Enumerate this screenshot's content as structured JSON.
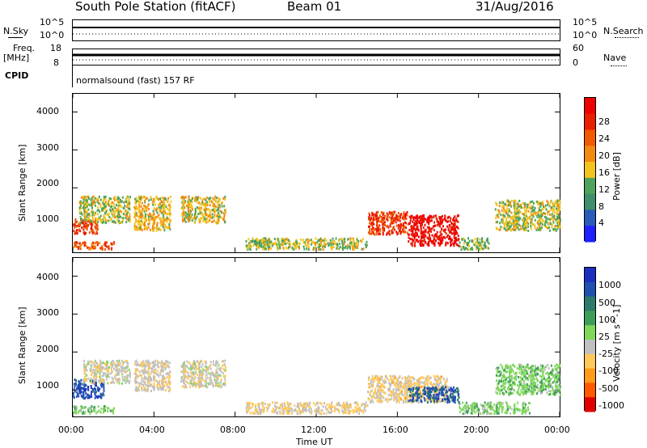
{
  "header": {
    "station": "South Pole Station (fitACF)",
    "beam": "Beam 01",
    "date": "31/Aug/2016"
  },
  "top_panels": {
    "nsky_label": "N.Sky",
    "nsky_ticks": [
      "10^5",
      "10^0"
    ],
    "nsearch_label": "N.Search",
    "nsearch_ticks": [
      "10^5",
      "10^0"
    ],
    "freq_label": "Freq.",
    "freq_unit": "[MHz]",
    "freq_ticks": [
      "18",
      "8"
    ],
    "nave_label": "Nave",
    "nave_ticks": [
      "60",
      "0"
    ],
    "cpid_label": "CPID",
    "cpid_text": "normalsound (fast) 157 RF"
  },
  "colors": {
    "power_scale": [
      "#1f1fff",
      "#2a5bb8",
      "#3e8f6b",
      "#4fa35a",
      "#f2c51e",
      "#f38a10",
      "#f05a00",
      "#e82000",
      "#ee0000"
    ],
    "velocity_scale": [
      "#e00000",
      "#ff5a00",
      "#ff9a1a",
      "#ffc85a",
      "#c0c0c0",
      "#7fd85a",
      "#3c9e58",
      "#2c7a6a",
      "#2050b0",
      "#1a2fc0"
    ]
  },
  "chart_data": [
    {
      "type": "heatmap",
      "title": "",
      "xlabel": "",
      "ylabel": "Slant Range [km]",
      "x_ticks": [
        "00:00",
        "04:00",
        "08:00",
        "12:00",
        "16:00",
        "20:00",
        "00:00"
      ],
      "y_ticks": [
        "1000",
        "2000",
        "3000",
        "4000"
      ],
      "ylim": [
        300,
        4500
      ],
      "colorbar": {
        "label": "Power [dB]",
        "ticks": [
          "4",
          "8",
          "12",
          "16",
          "20",
          "24",
          "28"
        ],
        "range": [
          0,
          30
        ]
      },
      "patches": [
        {
          "t": [
            0.0,
            1.2
          ],
          "r": [
            800,
            1200
          ],
          "value": 24
        },
        {
          "t": [
            0.3,
            2.8
          ],
          "r": [
            1100,
            1800
          ],
          "value": 14
        },
        {
          "t": [
            0.0,
            2.0
          ],
          "r": [
            400,
            600
          ],
          "value": 22
        },
        {
          "t": [
            3.0,
            4.8
          ],
          "r": [
            900,
            1800
          ],
          "value": 16
        },
        {
          "t": [
            5.3,
            7.5
          ],
          "r": [
            1100,
            1800
          ],
          "value": 15
        },
        {
          "t": [
            8.5,
            9.5
          ],
          "r": [
            400,
            700
          ],
          "value": 12
        },
        {
          "t": [
            9.0,
            14.5
          ],
          "r": [
            400,
            700
          ],
          "value": 14
        },
        {
          "t": [
            14.5,
            16.5
          ],
          "r": [
            800,
            1400
          ],
          "value": 24
        },
        {
          "t": [
            16.5,
            19.0
          ],
          "r": [
            500,
            1300
          ],
          "value": 28
        },
        {
          "t": [
            19.0,
            20.5
          ],
          "r": [
            400,
            700
          ],
          "value": 12
        },
        {
          "t": [
            20.8,
            24.0
          ],
          "r": [
            900,
            1700
          ],
          "value": 14
        }
      ]
    },
    {
      "type": "heatmap",
      "title": "",
      "xlabel": "Time UT",
      "ylabel": "Slant Range [km]",
      "x_ticks": [
        "00:00",
        "04:00",
        "08:00",
        "12:00",
        "16:00",
        "20:00",
        "00:00"
      ],
      "y_ticks": [
        "1000",
        "2000",
        "3000",
        "4000"
      ],
      "ylim": [
        300,
        4500
      ],
      "colorbar": {
        "label": "Velocity [m s^-1]",
        "ticks": [
          "1000",
          "500",
          "100",
          "25",
          "-25",
          "-100",
          "-500",
          "-1000"
        ],
        "range": [
          -1200,
          1200
        ]
      },
      "patches": [
        {
          "t": [
            0.0,
            1.5
          ],
          "r": [
            800,
            1300
          ],
          "value": 900
        },
        {
          "t": [
            0.5,
            2.8
          ],
          "r": [
            1200,
            1800
          ],
          "value": -150
        },
        {
          "t": [
            0.0,
            2.0
          ],
          "r": [
            400,
            600
          ],
          "value": 150
        },
        {
          "t": [
            3.0,
            4.8
          ],
          "r": [
            1000,
            1800
          ],
          "value": -200
        },
        {
          "t": [
            5.3,
            7.5
          ],
          "r": [
            1100,
            1800
          ],
          "value": -150
        },
        {
          "t": [
            8.5,
            14.5
          ],
          "r": [
            400,
            700
          ],
          "value": -250
        },
        {
          "t": [
            14.5,
            18.5
          ],
          "r": [
            700,
            1400
          ],
          "value": -300
        },
        {
          "t": [
            16.5,
            19.0
          ],
          "r": [
            700,
            1100
          ],
          "value": 800
        },
        {
          "t": [
            19.0,
            22.5
          ],
          "r": [
            400,
            700
          ],
          "value": 120
        },
        {
          "t": [
            20.8,
            24.0
          ],
          "r": [
            900,
            1700
          ],
          "value": 150
        }
      ]
    }
  ]
}
